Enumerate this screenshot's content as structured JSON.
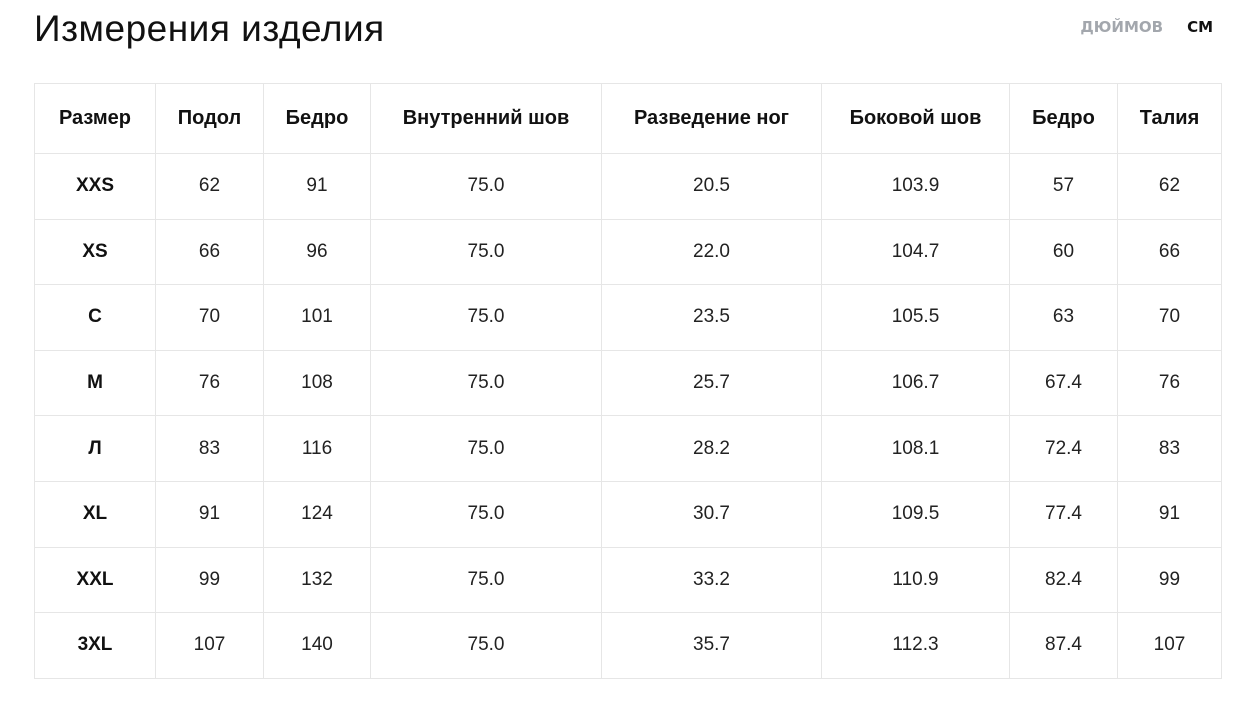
{
  "header": {
    "title": "Измерения изделия",
    "units": [
      "ДЮЙМОВ",
      "СМ"
    ]
  },
  "table": {
    "columns": [
      "Размер",
      "Подол",
      "Бедро",
      "Внутренний шов",
      "Разведение ног",
      "Боковой шов",
      "Бедро",
      "Талия"
    ],
    "rows": [
      [
        "XXS",
        "62",
        "91",
        "75.0",
        "20.5",
        "103.9",
        "57",
        "62"
      ],
      [
        "XS",
        "66",
        "96",
        "75.0",
        "22.0",
        "104.7",
        "60",
        "66"
      ],
      [
        "С",
        "70",
        "101",
        "75.0",
        "23.5",
        "105.5",
        "63",
        "70"
      ],
      [
        "М",
        "76",
        "108",
        "75.0",
        "25.7",
        "106.7",
        "67.4",
        "76"
      ],
      [
        "Л",
        "83",
        "116",
        "75.0",
        "28.2",
        "108.1",
        "72.4",
        "83"
      ],
      [
        "XL",
        "91",
        "124",
        "75.0",
        "30.7",
        "109.5",
        "77.4",
        "91"
      ],
      [
        "XXL",
        "99",
        "132",
        "75.0",
        "33.2",
        "110.9",
        "82.4",
        "99"
      ],
      [
        "3XL",
        "107",
        "140",
        "75.0",
        "35.7",
        "112.3",
        "87.4",
        "107"
      ]
    ]
  }
}
